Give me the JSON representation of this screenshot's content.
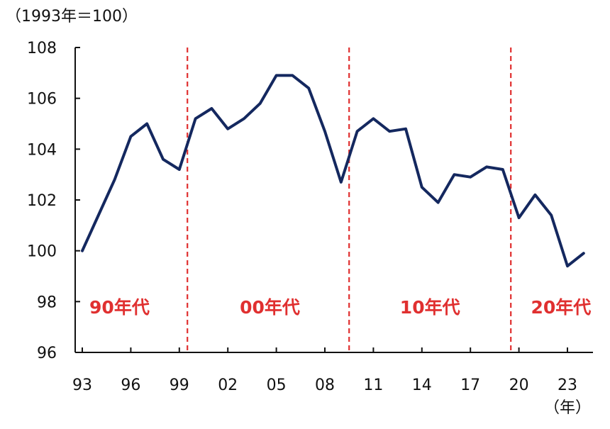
{
  "chart_data": {
    "type": "line",
    "unit_label": "（1993年＝100）",
    "x_unit": "（年）",
    "years": [
      1993,
      1994,
      1995,
      1996,
      1997,
      1998,
      1999,
      2000,
      2001,
      2002,
      2003,
      2004,
      2005,
      2006,
      2007,
      2008,
      2009,
      2010,
      2011,
      2012,
      2013,
      2014,
      2015,
      2016,
      2017,
      2018,
      2019,
      2020,
      2021,
      2022,
      2023,
      2024
    ],
    "x_ticks": [
      {
        "year": 1993,
        "label": "93"
      },
      {
        "year": 1996,
        "label": "96"
      },
      {
        "year": 1999,
        "label": "99"
      },
      {
        "year": 2002,
        "label": "02"
      },
      {
        "year": 2005,
        "label": "05"
      },
      {
        "year": 2008,
        "label": "08"
      },
      {
        "year": 2011,
        "label": "11"
      },
      {
        "year": 2014,
        "label": "14"
      },
      {
        "year": 2017,
        "label": "17"
      },
      {
        "year": 2020,
        "label": "20"
      },
      {
        "year": 2023,
        "label": "23"
      }
    ],
    "values": [
      100.0,
      101.4,
      102.8,
      104.5,
      105.0,
      103.6,
      103.2,
      105.2,
      105.6,
      104.8,
      105.2,
      105.8,
      106.9,
      106.9,
      106.4,
      104.7,
      102.7,
      104.7,
      105.2,
      104.7,
      104.8,
      102.5,
      101.9,
      103.0,
      102.9,
      103.3,
      103.2,
      101.3,
      102.2,
      101.4,
      99.4,
      99.9
    ],
    "ylim": [
      96,
      108
    ],
    "y_ticks": [
      96,
      98,
      100,
      102,
      104,
      106,
      108
    ],
    "dividers": [
      2000,
      2010,
      2020
    ],
    "decade_labels": [
      {
        "label": "90年代",
        "center_year": 1995.3
      },
      {
        "label": "00年代",
        "center_year": 2004.6
      },
      {
        "label": "10年代",
        "center_year": 2014.5
      },
      {
        "label": "20年代",
        "center_year": 2022.6
      }
    ],
    "colors": {
      "line": "#14285f",
      "divider": "#e03030",
      "decade_label": "#e03030",
      "axis": "#111111"
    }
  }
}
